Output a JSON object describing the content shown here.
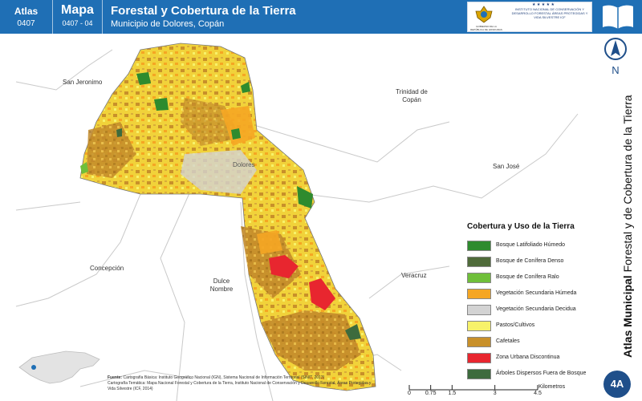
{
  "header": {
    "atlas_label": "Atlas",
    "atlas_number": "0407",
    "mapa_label": "Mapa",
    "mapa_number": "0407 - 04",
    "title": "Forestal y Cobertura de la Tierra",
    "subtitle": "Municipio de Dolores, Copán",
    "logo_left_text": "GOBIERNO DE LA REPÚBLICA DE HONDURAS",
    "logo_right_text": "INSTITUTO NACIONAL DE CONSERVACIÓN Y DESARROLLO FORESTAL ÁREAS PROTEGIDAS Y VIDA SILVESTRE ICF"
  },
  "map": {
    "places": [
      {
        "name": "San Jeronimo"
      },
      {
        "name": "Trinidad de Copán"
      },
      {
        "name": "Dolores"
      },
      {
        "name": "San José"
      },
      {
        "name": "Concepción"
      },
      {
        "name": "Veracruz"
      },
      {
        "name": "Dulce Nombre"
      }
    ],
    "north_label": "N"
  },
  "legend": {
    "title": "Cobertura y Uso de la Tierra",
    "items": [
      {
        "label": "Bosque Latifoliado Húmedo",
        "color": "#2e8b2e"
      },
      {
        "label": "Bosque de Conífera Denso",
        "color": "#4f6b3a"
      },
      {
        "label": "Bosque de Conífera Ralo",
        "color": "#6fbf3a"
      },
      {
        "label": "Vegetación Secundaria Húmeda",
        "color": "#f5a623"
      },
      {
        "label": "Vegetación Secundaria Decidua",
        "color": "#d3d3d3"
      },
      {
        "label": "Pastos/Cultivos",
        "color": "#f7f26a"
      },
      {
        "label": "Cafetales",
        "color": "#c8902a"
      },
      {
        "label": "Zona Urbana Discontinua",
        "color": "#e8262f"
      },
      {
        "label": "Árboles Dispersos Fuera de Bosque",
        "color": "#3d6b3d"
      }
    ]
  },
  "side_title": {
    "bold": "Atlas Municipal",
    "rest": " Forestal y de Cobertura de la Tierra"
  },
  "badge": "4A",
  "source": {
    "label": "Fuente:",
    "line1": "Cartografía Básica: Instituto Geográfico Nacional (IGN), Sistema Nacional de Información Territorial (SINIT, 2013)",
    "line2": "Cartografía Temática: Mapa Nacional Forestal y Cobertura de la Tierra, Instituto Nacional de Conservación y Desarrollo Forestal, Áreas Protegidas y Vida Silvestre (ICF, 2014)"
  },
  "scale": {
    "ticks": [
      "0",
      "0.75",
      "1.5",
      "3",
      "4.5"
    ],
    "tick_values": [
      0,
      0.75,
      1.5,
      3,
      4.5
    ],
    "max": 4.5,
    "unit": "Kilometros"
  }
}
